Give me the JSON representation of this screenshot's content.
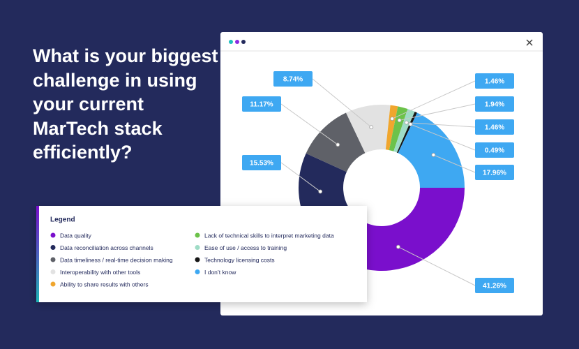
{
  "chart_data": {
    "type": "donut",
    "title": "What is your biggest challenge in using your current MarTech stack efficiently?",
    "legend_title": "Legend",
    "categories": [
      "Data quality",
      "Data reconciliation across channels",
      "Data timeliness / real-time decision making",
      "Interoperability with other tools",
      "Ability to share results with others",
      "Lack of technical skills to interpret marketing data",
      "Ease of use / access to training",
      "Technology licensing costs",
      "I don’t know"
    ],
    "values": [
      41.26,
      15.53,
      11.17,
      8.74,
      1.46,
      1.94,
      1.46,
      0.49,
      17.96
    ],
    "value_labels": [
      "41.26%",
      "15.53%",
      "11.17%",
      "8.74%",
      "1.46%",
      "1.94%",
      "1.46%",
      "0.49%",
      "17.96%"
    ],
    "colors": [
      "#7a0fcc",
      "#232a5c",
      "#5f6168",
      "#e2e2e2",
      "#f0a62e",
      "#6cc24a",
      "#9fdcc6",
      "#151515",
      "#3ea8f2"
    ]
  }
}
